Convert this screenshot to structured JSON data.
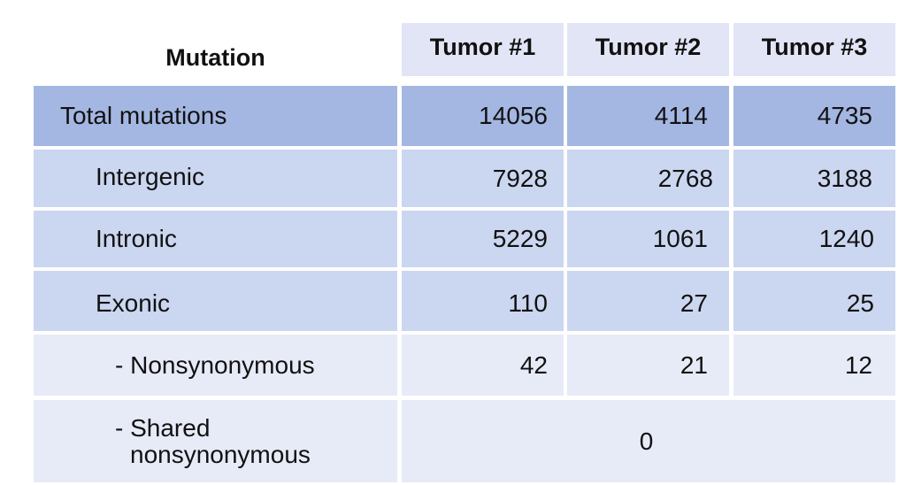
{
  "chart_data": {
    "type": "table",
    "columns": [
      "Mutation",
      "Tumor #1",
      "Tumor #2",
      "Tumor #3"
    ],
    "rows": [
      {
        "label": "Total mutations",
        "values": [
          "14056",
          "4114",
          "4735"
        ]
      },
      {
        "label": "Intergenic",
        "values": [
          "7928",
          "2768",
          "3188"
        ]
      },
      {
        "label": "Intronic",
        "values": [
          "5229",
          "1061",
          "1240"
        ]
      },
      {
        "label": "Exonic",
        "values": [
          "110",
          "27",
          "25"
        ]
      },
      {
        "label": "- Nonsynonymous",
        "values": [
          "42",
          "21",
          "12"
        ]
      },
      {
        "label_line1": "- Shared",
        "label_line2": "nonsynonymous",
        "merged_value": "0"
      }
    ],
    "colors": {
      "header": "#e2e5f6",
      "total_row": "#a4b7e2",
      "category_rows": "#cbd6f0",
      "detail_rows": "#e7ebf7"
    }
  }
}
